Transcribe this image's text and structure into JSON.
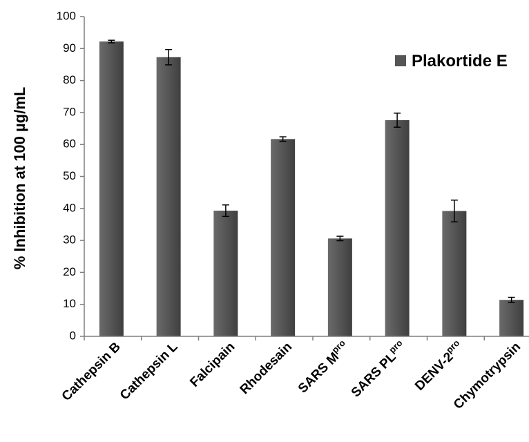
{
  "chart_data": {
    "type": "bar",
    "title": "",
    "xlabel": "",
    "ylabel": "% Inhibition at 100 µg/mL",
    "ylim": [
      0,
      100
    ],
    "yticks": [
      0,
      10,
      20,
      30,
      40,
      50,
      60,
      70,
      80,
      90,
      100
    ],
    "grid": false,
    "legend_position": "top-right",
    "categories": [
      {
        "base": "Cathepsin B",
        "sup": ""
      },
      {
        "base": "Cathepsin L",
        "sup": ""
      },
      {
        "base": "Falcipain",
        "sup": ""
      },
      {
        "base": "Rhodesain",
        "sup": ""
      },
      {
        "base": "SARS M",
        "sup": "pro"
      },
      {
        "base": "SARS PL",
        "sup": "pro"
      },
      {
        "base": "DENV-2",
        "sup": "pro"
      },
      {
        "base": "Chymotrypsin",
        "sup": ""
      }
    ],
    "series": [
      {
        "name": "Plakortide E",
        "color": "#555555",
        "values": [
          92.2,
          87.3,
          39.3,
          61.7,
          30.6,
          67.6,
          39.2,
          11.4
        ],
        "errors": [
          0.4,
          2.4,
          1.8,
          0.7,
          0.7,
          2.2,
          3.4,
          0.8
        ]
      }
    ]
  }
}
